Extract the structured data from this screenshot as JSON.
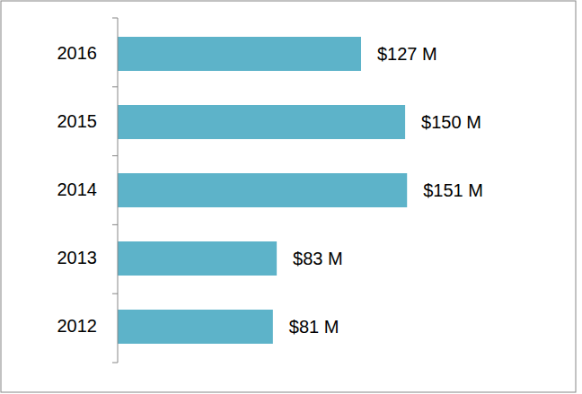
{
  "chart_data": {
    "type": "bar",
    "orientation": "horizontal",
    "categories": [
      "2016",
      "2015",
      "2014",
      "2013",
      "2012"
    ],
    "values": [
      127,
      150,
      151,
      83,
      81
    ],
    "value_labels": [
      "$127 M",
      "$150 M",
      "$151 M",
      "$83 M",
      "$81 M"
    ],
    "color": "#5db3c9",
    "xlim": [
      0,
      239
    ],
    "data_labels": true,
    "tick_labels": "y",
    "grid": false
  }
}
